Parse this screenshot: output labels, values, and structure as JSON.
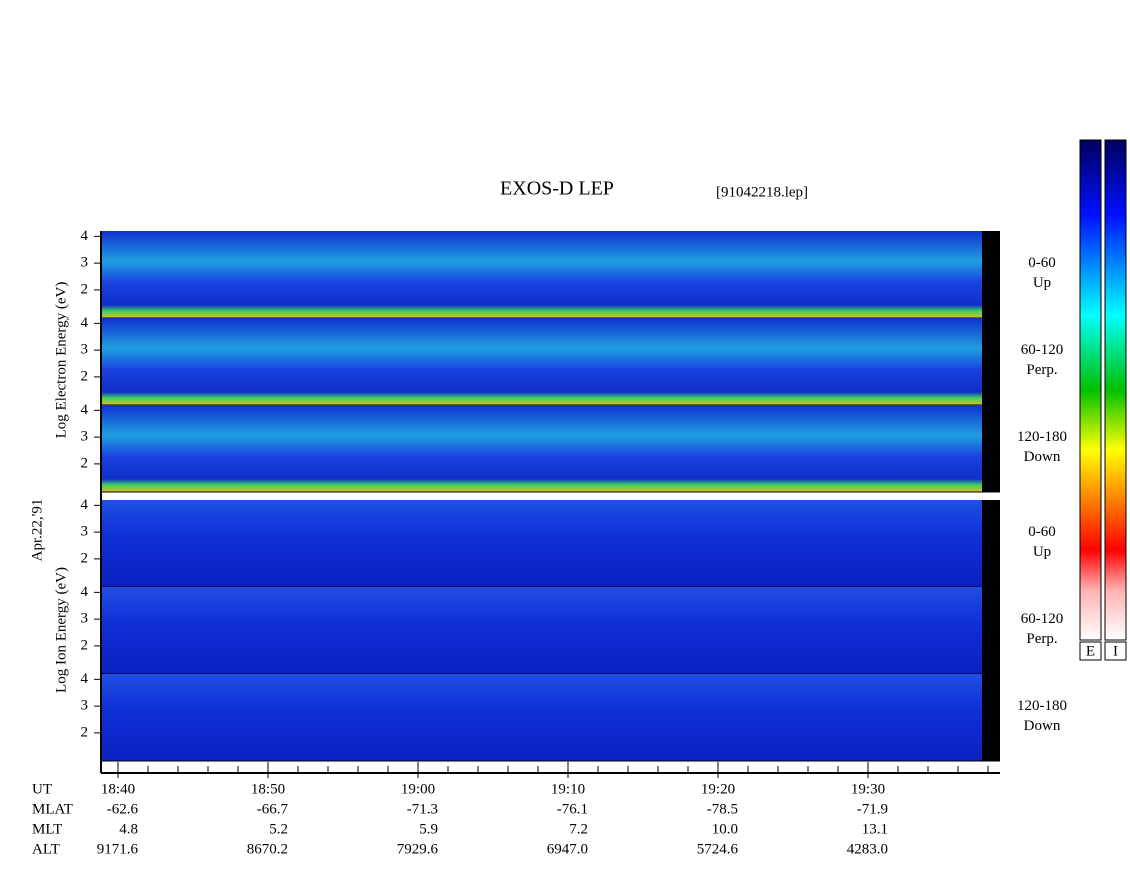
{
  "chart_data": {
    "type": "spectrogram",
    "title": "EXOS-D LEP",
    "file": "[91042218.lep]",
    "date": "Apr.22,'91",
    "electron_label": "Log Electron Energy (eV)",
    "ion_label": "Log Ion Energy (eV)",
    "ylim": [
      0.95,
      4.2
    ],
    "yticks": [
      2,
      3,
      4
    ],
    "panels": [
      {
        "species": "electron",
        "angle": "0-60",
        "direction": "Up"
      },
      {
        "species": "electron",
        "angle": "60-120",
        "direction": "Perp."
      },
      {
        "species": "electron",
        "angle": "120-180",
        "direction": "Down"
      },
      {
        "species": "ion",
        "angle": "0-60",
        "direction": "Up"
      },
      {
        "species": "ion",
        "angle": "60-120",
        "direction": "Perp."
      },
      {
        "species": "ion",
        "angle": "120-180",
        "direction": "Down"
      }
    ],
    "x_row": {
      "name": "UT",
      "values": [
        "18:40",
        "18:50",
        "19:00",
        "19:10",
        "19:20",
        "19:30"
      ]
    },
    "rows": [
      {
        "name": "MLAT",
        "values": [
          "-62.6",
          "-66.7",
          "-71.3",
          "-76.1",
          "-78.5",
          "-71.9"
        ]
      },
      {
        "name": "MLT",
        "values": [
          "4.8",
          "5.2",
          "5.9",
          "7.2",
          "10.0",
          "13.1"
        ]
      },
      {
        "name": "ALT",
        "values": [
          "9171.6",
          "8670.2",
          "7929.6",
          "6947.0",
          "5724.6",
          "4283.0"
        ]
      }
    ],
    "colorbars": [
      "E",
      "I"
    ]
  }
}
